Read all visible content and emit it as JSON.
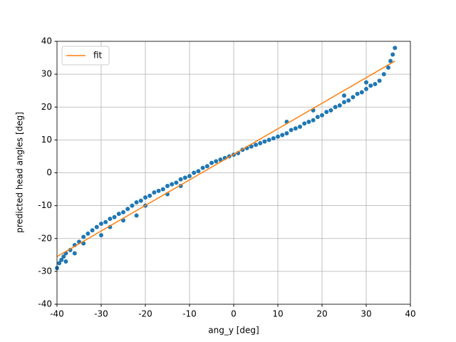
{
  "chart_data": {
    "type": "scatter",
    "xlabel": "ang_y [deg]",
    "ylabel": "predicted head angles [deg]",
    "xlim": [
      -40,
      40
    ],
    "ylim": [
      -40,
      40
    ],
    "xticks": [
      -40,
      -30,
      -20,
      -10,
      0,
      10,
      20,
      30,
      40
    ],
    "yticks": [
      -40,
      -30,
      -20,
      -10,
      0,
      10,
      20,
      30,
      40
    ],
    "grid": true,
    "legend": "upper left",
    "points": {
      "color": "#1f77b4",
      "x": [
        -40,
        -39.5,
        -39,
        -38.5,
        -38,
        -37,
        -36,
        -35,
        -34,
        -33,
        -32,
        -31,
        -30,
        -29,
        -28,
        -27,
        -26,
        -25,
        -24,
        -23,
        -22,
        -21,
        -20,
        -19,
        -18,
        -17,
        -16,
        -15,
        -14,
        -13,
        -12,
        -11,
        -10,
        -9,
        -8,
        -7,
        -6,
        -5,
        -4,
        -3,
        -2,
        -1,
        0,
        1,
        2,
        3,
        4,
        5,
        6,
        7,
        8,
        9,
        10,
        11,
        12,
        13,
        14,
        15,
        16,
        17,
        18,
        19,
        20,
        21,
        22,
        23,
        24,
        25,
        26,
        27,
        28,
        29,
        30,
        31,
        32,
        33,
        34,
        35,
        35.5,
        36,
        36.5,
        -38,
        -36,
        -34,
        -30,
        -28,
        -25,
        -22,
        -20,
        -15,
        -12,
        12,
        18,
        25,
        30
      ],
      "values": [
        -29,
        -27.5,
        -26.5,
        -25.5,
        -24.5,
        -23.5,
        -22,
        -21,
        -19.5,
        -18.5,
        -17.5,
        -16.5,
        -15.5,
        -15,
        -14,
        -13.5,
        -12.5,
        -12,
        -11,
        -10,
        -9,
        -8.5,
        -7.5,
        -7,
        -6,
        -5.5,
        -5,
        -4,
        -3.5,
        -3,
        -2,
        -1.5,
        -1,
        0,
        0.5,
        1.5,
        2,
        3,
        3.5,
        4,
        4.5,
        5,
        5.5,
        6,
        7,
        7.5,
        8,
        8.5,
        9,
        9.5,
        10,
        10.5,
        11,
        11.5,
        12,
        13,
        13.5,
        14,
        15,
        15.5,
        16,
        17,
        17.5,
        18.5,
        19,
        20,
        20.5,
        21.5,
        22,
        23,
        24,
        24.5,
        25.5,
        26.5,
        27,
        28,
        30,
        32,
        34,
        36,
        38,
        -27,
        -24.5,
        -21.5,
        -19,
        -16.5,
        -14.5,
        -13,
        -10,
        -6.5,
        -4,
        15.5,
        19,
        23.5,
        27.5
      ]
    },
    "series": [
      {
        "name": "fit",
        "color": "#ff7f0e",
        "x": [
          -40,
          36.5
        ],
        "values": [
          -25.5,
          34
        ]
      }
    ]
  }
}
